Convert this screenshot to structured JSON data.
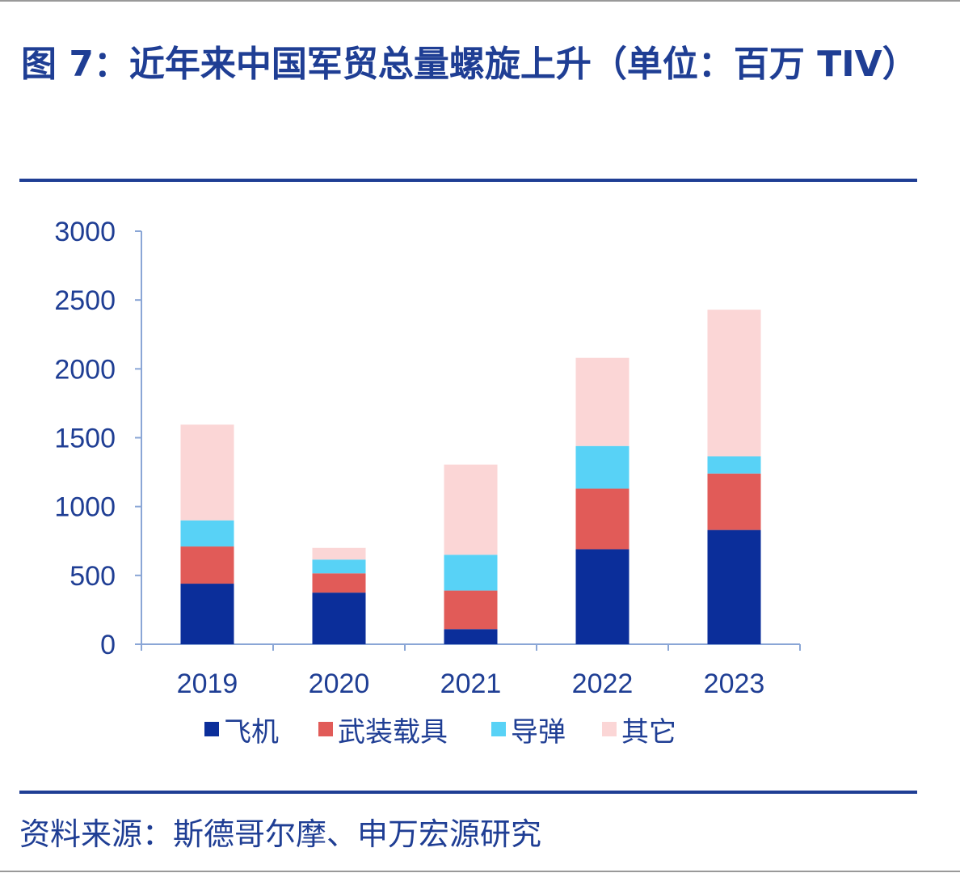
{
  "title": "图 7：近年来中国军贸总量螺旋上升（单位：百万 TIV）",
  "source": "资料来源：斯德哥尔摩、申万宏源研究",
  "colors": {
    "accent": "#1F3E94",
    "axis": "#8AA6D6",
    "aircraft": "#0B2E9A",
    "armored": "#E15B58",
    "missile": "#58D2F6",
    "other": "#FBD6D6"
  },
  "chart_data": {
    "type": "bar",
    "stacked": true,
    "categories": [
      "2019",
      "2020",
      "2021",
      "2022",
      "2023"
    ],
    "series": [
      {
        "name": "飞机",
        "values": [
          440,
          375,
          110,
          690,
          830
        ]
      },
      {
        "name": "武装载具",
        "values": [
          270,
          140,
          280,
          440,
          410
        ]
      },
      {
        "name": "导弹",
        "values": [
          190,
          100,
          260,
          310,
          125
        ]
      },
      {
        "name": "其它",
        "values": [
          695,
          85,
          655,
          640,
          1065
        ]
      }
    ],
    "ylim": [
      0,
      3000
    ],
    "yticks": [
      0,
      500,
      1000,
      1500,
      2000,
      2500,
      3000
    ],
    "grid": false,
    "legend": "bottom"
  }
}
